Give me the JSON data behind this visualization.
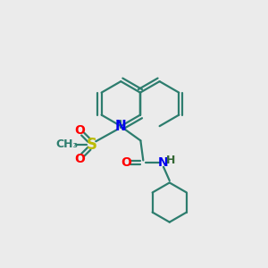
{
  "bg_color": "#ebebeb",
  "bond_color": "#2d7d6e",
  "N_color": "#0000ee",
  "S_color": "#bbbb00",
  "O_color": "#ff0000",
  "NH_color": "#336633",
  "line_width": 1.6,
  "figure_size": [
    3.0,
    3.0
  ],
  "dpi": 100,
  "xlim": [
    0,
    10
  ],
  "ylim": [
    0,
    10
  ]
}
